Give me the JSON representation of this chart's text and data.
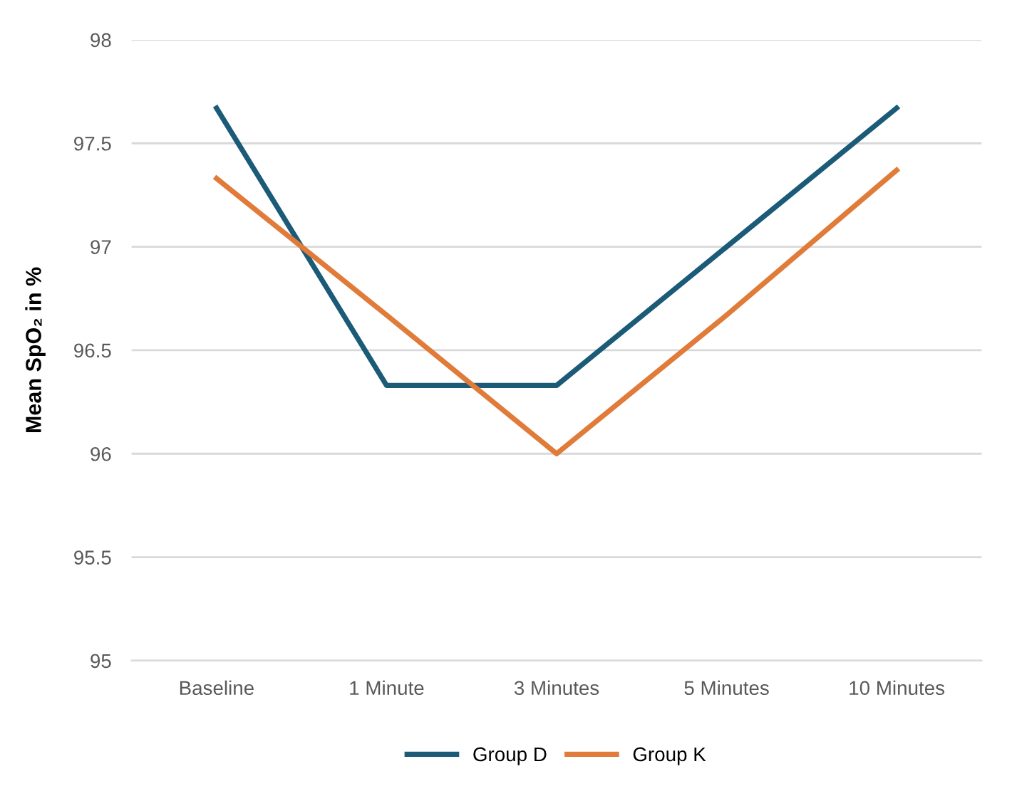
{
  "chart_data": {
    "type": "line",
    "ylabel": "Mean SpO₂ in %",
    "categories": [
      "Baseline",
      "1 Minute",
      "3 Minutes",
      "5 Minutes",
      "10 Minutes"
    ],
    "series": [
      {
        "name": "Group D",
        "color": "#1b5b78",
        "values": [
          97.67,
          96.33,
          96.33,
          97.0,
          97.67
        ]
      },
      {
        "name": "Group K",
        "color": "#e07b39",
        "values": [
          97.33,
          96.67,
          96.0,
          96.67,
          97.37
        ]
      }
    ],
    "ylim": [
      95,
      98
    ],
    "yticks": [
      95,
      95.5,
      96,
      96.5,
      97,
      97.5,
      98
    ],
    "grid": "y",
    "legend": "bottom",
    "marker": "none",
    "line_style": "solid"
  }
}
